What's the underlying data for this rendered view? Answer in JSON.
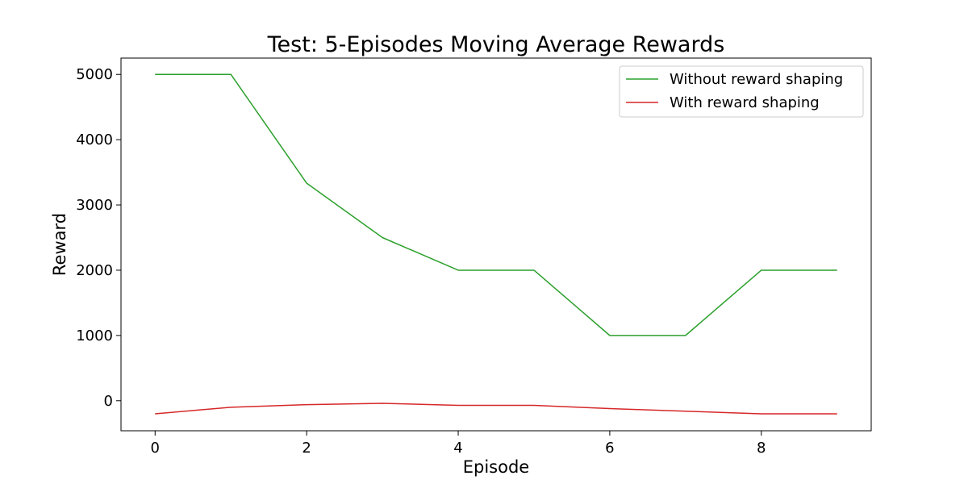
{
  "chart_data": {
    "type": "line",
    "title": "Test: 5-Episodes Moving Average Rewards",
    "xlabel": "Episode",
    "ylabel": "Reward",
    "x": [
      0,
      1,
      2,
      3,
      4,
      5,
      6,
      7,
      8,
      9
    ],
    "xlim": [
      -0.45,
      9.45
    ],
    "ylim": [
      -460,
      5250
    ],
    "xticks": [
      0,
      2,
      4,
      6,
      8
    ],
    "yticks": [
      0,
      1000,
      2000,
      3000,
      4000,
      5000
    ],
    "grid": false,
    "legend_position": "top-right",
    "series": [
      {
        "name": "Without reward shaping",
        "color": "#2ca02c",
        "values": [
          5000,
          5000,
          3333,
          2500,
          2000,
          2000,
          1000,
          1000,
          2000,
          2000
        ]
      },
      {
        "name": "With reward shaping",
        "color": "#d62728",
        "values": [
          -200,
          -100,
          -60,
          -40,
          -70,
          -70,
          -120,
          -160,
          -200,
          -200
        ]
      }
    ]
  }
}
